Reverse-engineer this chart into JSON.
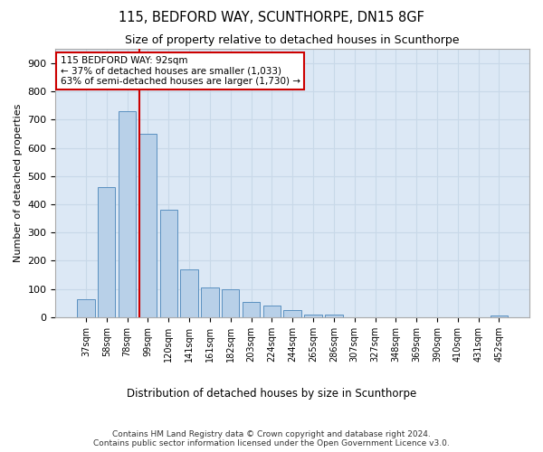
{
  "title": "115, BEDFORD WAY, SCUNTHORPE, DN15 8GF",
  "subtitle": "Size of property relative to detached houses in Scunthorpe",
  "xlabel": "Distribution of detached houses by size in Scunthorpe",
  "ylabel": "Number of detached properties",
  "categories": [
    "37sqm",
    "58sqm",
    "78sqm",
    "99sqm",
    "120sqm",
    "141sqm",
    "161sqm",
    "182sqm",
    "203sqm",
    "224sqm",
    "244sqm",
    "265sqm",
    "286sqm",
    "307sqm",
    "327sqm",
    "348sqm",
    "369sqm",
    "390sqm",
    "410sqm",
    "431sqm",
    "452sqm"
  ],
  "values": [
    65,
    460,
    730,
    650,
    380,
    170,
    105,
    100,
    55,
    40,
    25,
    10,
    10,
    0,
    0,
    0,
    0,
    0,
    0,
    0,
    5
  ],
  "bar_color": "#b8d0e8",
  "bar_edgecolor": "#5a90c0",
  "grid_color": "#c8d8e8",
  "background_color": "#dce8f5",
  "vline_x": 2.57,
  "vline_color": "#cc0000",
  "annotation_text": "115 BEDFORD WAY: 92sqm\n← 37% of detached houses are smaller (1,033)\n63% of semi-detached houses are larger (1,730) →",
  "annotation_box_edgecolor": "#cc0000",
  "ylim": [
    0,
    950
  ],
  "yticks": [
    0,
    100,
    200,
    300,
    400,
    500,
    600,
    700,
    800,
    900
  ],
  "footnote": "Contains HM Land Registry data © Crown copyright and database right 2024.\nContains public sector information licensed under the Open Government Licence v3.0."
}
